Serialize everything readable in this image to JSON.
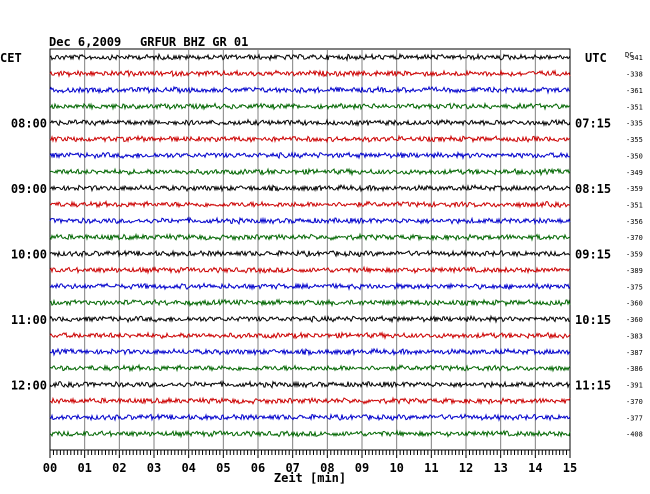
{
  "header": {
    "date": "Dec 6,2009",
    "station": "GRFUR BHZ GR 01"
  },
  "left_tz": "CET",
  "right_tz": "UTC",
  "dc_header": "DC",
  "x_axis_title": "Zeit [min]",
  "colors": {
    "black": "#000000",
    "red": "#cc0000",
    "blue": "#0000cc",
    "green": "#006600",
    "grid": "#808080"
  },
  "chart_data": {
    "type": "line",
    "title": "Dec 6,2009   GRFUR BHZ GR 01",
    "xlabel": "Zeit [min]",
    "xlim": [
      0,
      15
    ],
    "x_ticks": [
      "00",
      "01",
      "02",
      "03",
      "04",
      "05",
      "06",
      "07",
      "08",
      "09",
      "10",
      "11",
      "12",
      "13",
      "14",
      "15"
    ],
    "left_hour_labels": [
      {
        "row": 4,
        "label": "08:00"
      },
      {
        "row": 8,
        "label": "09:00"
      },
      {
        "row": 12,
        "label": "10:00"
      },
      {
        "row": 16,
        "label": "11:00"
      },
      {
        "row": 20,
        "label": "12:00"
      }
    ],
    "right_hour_labels": [
      {
        "row": 4,
        "label": "07:15"
      },
      {
        "row": 8,
        "label": "08:15"
      },
      {
        "row": 12,
        "label": "09:15"
      },
      {
        "row": 16,
        "label": "10:15"
      },
      {
        "row": 20,
        "label": "11:15"
      }
    ],
    "trace_colors": [
      "black",
      "red",
      "blue",
      "green"
    ],
    "dc_offsets": [
      -341,
      -338,
      -361,
      -351,
      -335,
      -355,
      -350,
      -349,
      -359,
      -351,
      -356,
      -370,
      -359,
      -389,
      -375,
      -360,
      -360,
      -383,
      -387,
      -386,
      -391,
      -370,
      -377,
      -408
    ],
    "grid": true
  }
}
